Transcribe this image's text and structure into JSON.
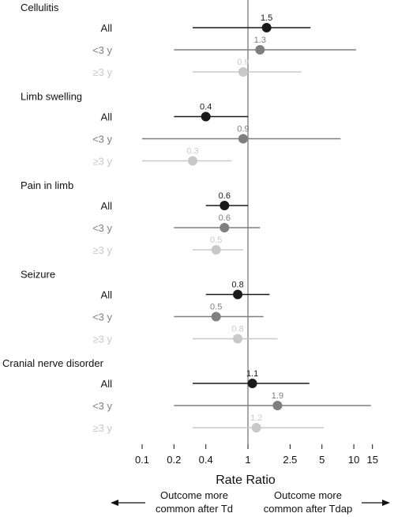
{
  "chart_data": {
    "type": "forest",
    "xlabel": "Rate Ratio",
    "x_scale": "log",
    "xlim": [
      0.08,
      17
    ],
    "reference_line": 1,
    "xticks": [
      {
        "value": 0.1,
        "label": "0.1"
      },
      {
        "value": 0.2,
        "label": "0.2"
      },
      {
        "value": 0.4,
        "label": "0.4"
      },
      {
        "value": 1,
        "label": "1"
      },
      {
        "value": 2.5,
        "label": "2.5"
      },
      {
        "value": 5,
        "label": "5"
      },
      {
        "value": 10,
        "label": "10"
      },
      {
        "value": 15,
        "label": "15"
      }
    ],
    "subgroup_colors": {
      "All": "#1a1a1a",
      "<3 y": "#7f7f7f",
      "≥3 y": "#c8c8c8"
    },
    "groups": [
      {
        "name": "Cellulitis",
        "rows": [
          {
            "label": "All",
            "estimate": 1.5,
            "estimate_label": "1.5",
            "lower": 0.3,
            "upper": 3.9
          },
          {
            "label": "<3 y",
            "estimate": 1.3,
            "estimate_label": "1.3",
            "lower": 0.2,
            "upper": 10.5
          },
          {
            "label": "≥3 y",
            "estimate": 0.9,
            "estimate_label": "0.9",
            "lower": 0.3,
            "upper": 3.2
          }
        ]
      },
      {
        "name": "Limb swelling",
        "rows": [
          {
            "label": "All",
            "estimate": 0.4,
            "estimate_label": "0.4",
            "lower": 0.2,
            "upper": 1.0
          },
          {
            "label": "<3 y",
            "estimate": 0.9,
            "estimate_label": "0.9",
            "lower": 0.1,
            "upper": 7.5
          },
          {
            "label": "≥3 y",
            "estimate": 0.3,
            "estimate_label": "0.3",
            "lower": 0.1,
            "upper": 0.7
          }
        ]
      },
      {
        "name": "Pain in limb",
        "rows": [
          {
            "label": "All",
            "estimate": 0.6,
            "estimate_label": "0.6",
            "lower": 0.4,
            "upper": 1.0
          },
          {
            "label": "<3 y",
            "estimate": 0.6,
            "estimate_label": "0.6",
            "lower": 0.2,
            "upper": 1.3
          },
          {
            "label": "≥3 y",
            "estimate": 0.5,
            "estimate_label": "0.5",
            "lower": 0.3,
            "upper": 0.9
          }
        ]
      },
      {
        "name": "Seizure",
        "rows": [
          {
            "label": "All",
            "estimate": 0.8,
            "estimate_label": "0.8",
            "lower": 0.4,
            "upper": 1.6
          },
          {
            "label": "<3 y",
            "estimate": 0.5,
            "estimate_label": "0.5",
            "lower": 0.2,
            "upper": 1.4
          },
          {
            "label": "≥3 y",
            "estimate": 0.8,
            "estimate_label": "0.8",
            "lower": 0.3,
            "upper": 1.9
          }
        ]
      },
      {
        "name": "Cranial nerve disorder",
        "rows": [
          {
            "label": "All",
            "estimate": 1.1,
            "estimate_label": "1.1",
            "lower": 0.3,
            "upper": 3.8
          },
          {
            "label": "<3 y",
            "estimate": 1.9,
            "estimate_label": "1.9",
            "lower": 0.2,
            "upper": 14.5
          },
          {
            "label": "≥3 y",
            "estimate": 1.2,
            "estimate_label": "1.2",
            "lower": 0.3,
            "upper": 5.2
          }
        ]
      }
    ],
    "annotations": {
      "left_arrow": {
        "text": "Outcome more common after Td",
        "lines": [
          "Outcome more",
          "common after Td"
        ],
        "direction": "left"
      },
      "right_arrow": {
        "text": "Outcome more common after Tdap",
        "lines": [
          "Outcome more",
          "common after Tdap"
        ],
        "direction": "right"
      }
    }
  }
}
